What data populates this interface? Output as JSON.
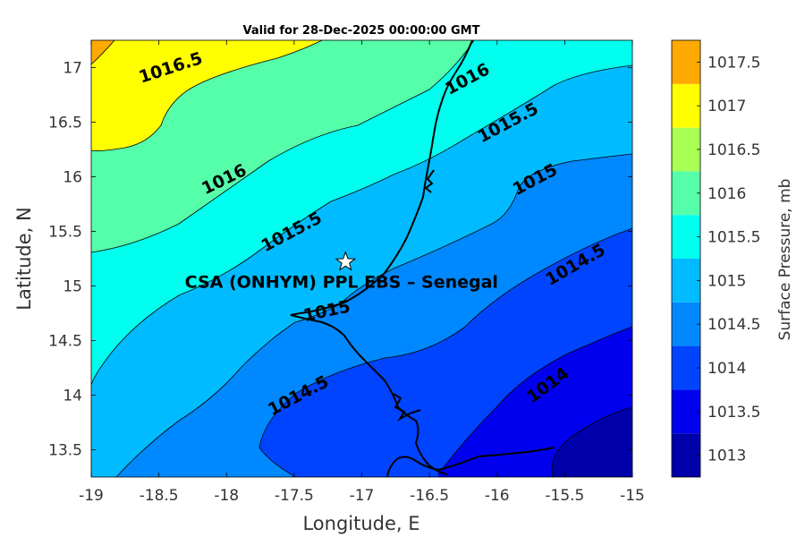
{
  "chart_data": {
    "type": "contour",
    "title": "Valid for 28-Dec-2025 00:00:00 GMT",
    "xlabel": "Longitude, E",
    "ylabel": "Latitude, N",
    "xlim": [
      -19,
      -15
    ],
    "ylim": [
      13.25,
      17.25
    ],
    "xticks": [
      "-19",
      "-18.5",
      "-18",
      "-17.5",
      "-17",
      "-16.5",
      "-16",
      "-15.5",
      "-15"
    ],
    "yticks": [
      "13.5",
      "14",
      "14.5",
      "15",
      "15.5",
      "16",
      "16.5",
      "17"
    ],
    "grid": false,
    "contour_levels": [
      1013,
      1013.5,
      1014,
      1014.5,
      1015,
      1015.5,
      1016,
      1016.5,
      1017,
      1017.5
    ],
    "contour_labels": [
      {
        "text": "1016.5",
        "lon": -18.4,
        "lat": 16.95
      },
      {
        "text": "1016",
        "lon": -16.2,
        "lat": 16.85
      },
      {
        "text": "1015.5",
        "lon": -15.9,
        "lat": 16.45
      },
      {
        "text": "1016",
        "lon": -18.0,
        "lat": 15.93
      },
      {
        "text": "1015",
        "lon": -15.7,
        "lat": 15.93
      },
      {
        "text": "1015.5",
        "lon": -17.5,
        "lat": 15.45
      },
      {
        "text": "1014.5",
        "lon": -15.4,
        "lat": 15.15
      },
      {
        "text": "1015",
        "lon": -17.25,
        "lat": 14.72
      },
      {
        "text": "1014.5",
        "lon": -17.45,
        "lat": 13.95
      },
      {
        "text": "1014",
        "lon": -15.6,
        "lat": 14.05
      }
    ],
    "marker": {
      "label": "CSA (ONHYM) PPL EBS  – Senegal",
      "lon": -17.12,
      "lat": 15.22
    },
    "colorbar": {
      "label": "Surface Pressure, mb",
      "levels": [
        "1013",
        "1013.5",
        "1014",
        "1014.5",
        "1015",
        "1015.5",
        "1016",
        "1016.5",
        "1017",
        "1017.5"
      ],
      "colors": [
        "#0000aa",
        "#0000ee",
        "#0044ff",
        "#0088ff",
        "#00bbff",
        "#00ffee",
        "#55ffaa",
        "#aaff55",
        "#ffff00",
        "#ffaa00",
        "#ff5500"
      ]
    }
  }
}
